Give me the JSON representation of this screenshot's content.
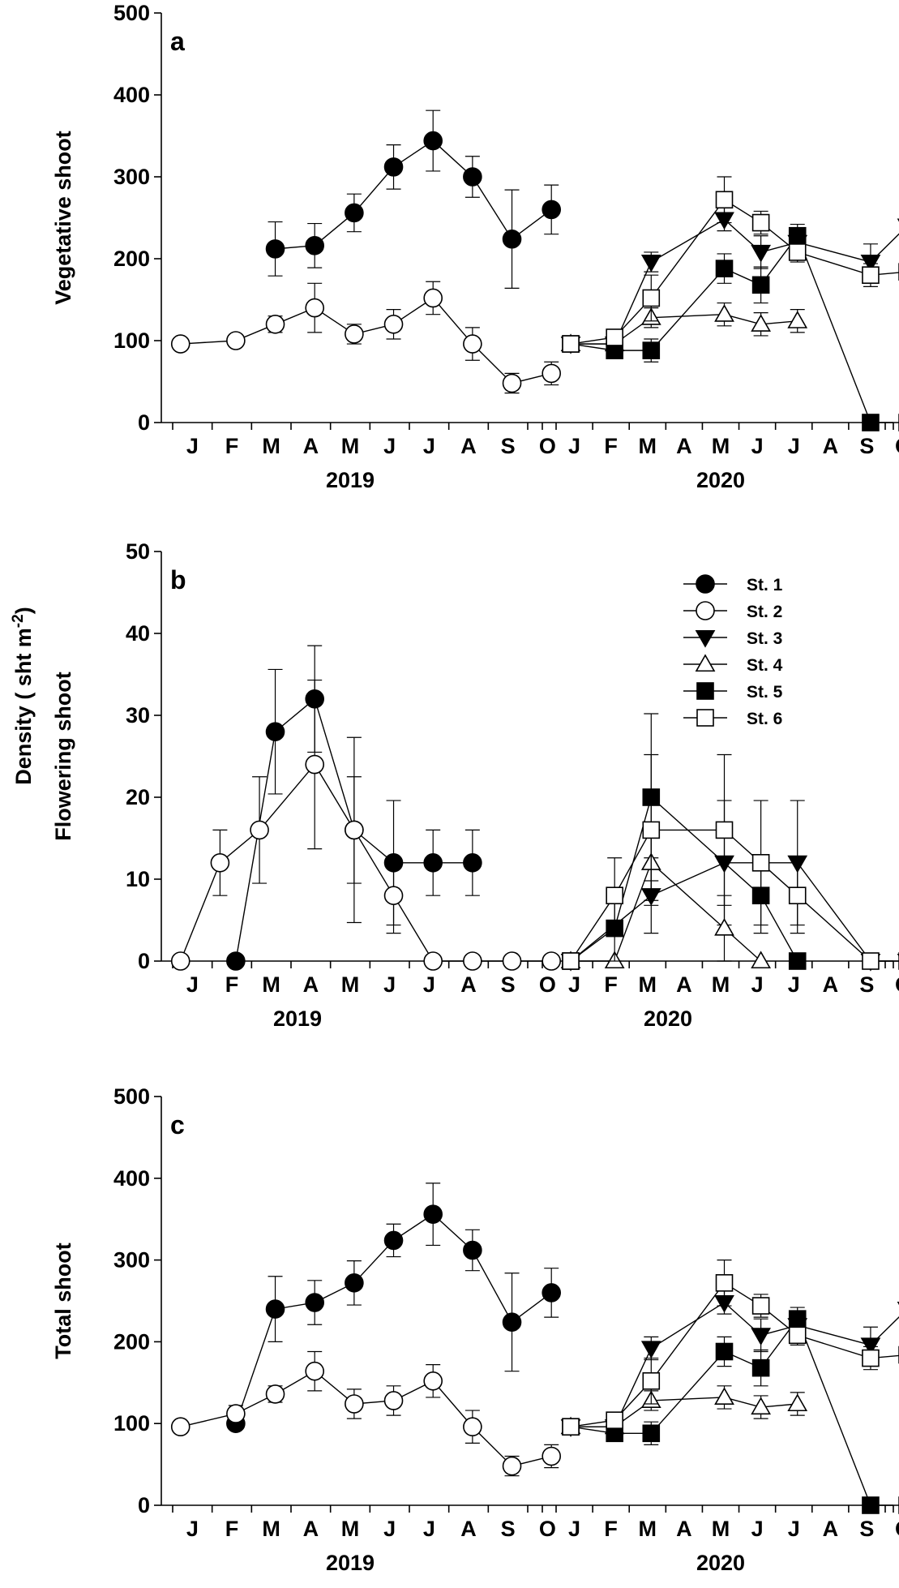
{
  "shared_ylabel": "Density ( sht m-2)",
  "chart_data": [
    {
      "type": "line",
      "panel": "a",
      "ylabel": "Vegetative shoot",
      "ylim": [
        0,
        500
      ],
      "yticks": [
        0,
        100,
        200,
        300,
        400,
        500
      ],
      "month_labels": [
        "J",
        "F",
        "M",
        "A",
        "M",
        "J",
        "J",
        "A",
        "S",
        "O"
      ],
      "year_labels": [
        "2019",
        "2020"
      ],
      "legend": false,
      "series": [
        {
          "name": "St. 1",
          "marker": "circle",
          "fill": "black",
          "year": 2019,
          "x": [
            2.6,
            3.6,
            4.6,
            5.6,
            6.6,
            7.6,
            8.6,
            9.6
          ],
          "y": [
            212,
            216,
            256,
            312,
            344,
            300,
            224,
            260
          ],
          "err": [
            33,
            27,
            23,
            27,
            37,
            25,
            60,
            30
          ]
        },
        {
          "name": "St. 2",
          "marker": "circle",
          "fill": "white",
          "year": 2019,
          "x": [
            0.2,
            1.6,
            2.6,
            3.6,
            4.6,
            5.6,
            6.6,
            7.6,
            8.6,
            9.6
          ],
          "y": [
            96,
            100,
            120,
            140,
            108,
            120,
            152,
            96,
            48,
            60
          ],
          "err": [
            0,
            0,
            10,
            30,
            12,
            18,
            20,
            20,
            12,
            14
          ]
        },
        {
          "name": "St. 3",
          "marker": "triangle-down",
          "fill": "black",
          "year": 2020,
          "x": [
            0.4,
            1.6,
            2.6,
            4.6,
            5.6,
            6.6,
            8.6,
            9.6
          ],
          "y": [
            96,
            96,
            196,
            248,
            208,
            220,
            196,
            240
          ],
          "err": [
            0,
            8,
            12,
            14,
            20,
            18,
            22,
            28
          ]
        },
        {
          "name": "St. 4",
          "marker": "triangle-up",
          "fill": "white",
          "year": 2020,
          "x": [
            0.4,
            1.6,
            2.6,
            4.6,
            5.6,
            6.6
          ],
          "y": [
            96,
            96,
            128,
            132,
            120,
            124
          ],
          "err": [
            0,
            8,
            12,
            14,
            14,
            14
          ]
        },
        {
          "name": "St. 5",
          "marker": "square",
          "fill": "black",
          "year": 2020,
          "x": [
            0.4,
            1.6,
            2.6,
            4.6,
            5.6,
            6.6,
            8.6,
            9.6
          ],
          "y": [
            96,
            88,
            88,
            188,
            168,
            228,
            0,
            0
          ],
          "err": [
            0,
            8,
            14,
            18,
            22,
            14,
            0,
            0
          ]
        },
        {
          "name": "St. 6",
          "marker": "square",
          "fill": "white",
          "year": 2020,
          "x": [
            0.4,
            1.6,
            2.6,
            4.6,
            5.6,
            6.6,
            8.6,
            9.6
          ],
          "y": [
            96,
            104,
            152,
            272,
            244,
            208,
            180,
            184
          ],
          "err": [
            0,
            8,
            28,
            28,
            14,
            12,
            14,
            22
          ]
        }
      ]
    },
    {
      "type": "line",
      "panel": "b",
      "ylabel": "Flowering shoot",
      "ylim": [
        0,
        50
      ],
      "yticks": [
        0,
        10,
        20,
        30,
        40,
        50
      ],
      "month_labels": [
        "J",
        "F",
        "M",
        "A",
        "M",
        "J",
        "J",
        "A",
        "S",
        "O"
      ],
      "year_labels": [
        "2019",
        "2020"
      ],
      "legend": true,
      "legend_placement": "top-right",
      "series": [
        {
          "name": "St. 1",
          "marker": "circle",
          "fill": "black",
          "year": 2019,
          "x": [
            1.6,
            2.6,
            3.6,
            4.6,
            5.6,
            6.6,
            7.6
          ],
          "y": [
            0,
            28,
            32,
            16,
            12,
            12,
            12
          ],
          "err": [
            0,
            7.6,
            6.5,
            11.3,
            7.6,
            4.0,
            4.0
          ]
        },
        {
          "name": "St. 2",
          "marker": "circle",
          "fill": "white",
          "year": 2019,
          "x": [
            0.2,
            1.2,
            2.2,
            3.6,
            4.6,
            5.6,
            6.6,
            7.6,
            8.6,
            9.6
          ],
          "y": [
            0,
            12,
            16,
            24,
            16,
            8,
            0,
            0,
            0,
            0
          ],
          "err": [
            0,
            4.0,
            6.5,
            10.3,
            6.5,
            4.6,
            0,
            0,
            0,
            0
          ]
        },
        {
          "name": "St. 3",
          "marker": "triangle-down",
          "fill": "black",
          "year": 2020,
          "x": [
            0.4,
            2.6,
            4.6,
            6.6,
            8.6,
            9.6
          ],
          "y": [
            0,
            8,
            12,
            12,
            0,
            0
          ],
          "err": [
            0,
            4.6,
            7.6,
            7.6,
            0,
            0
          ]
        },
        {
          "name": "St. 4",
          "marker": "triangle-up",
          "fill": "white",
          "year": 2020,
          "x": [
            0.4,
            1.6,
            2.6,
            4.6,
            5.6
          ],
          "y": [
            0,
            0,
            12,
            4,
            0
          ],
          "err": [
            0,
            0,
            4.6,
            4.0,
            0
          ]
        },
        {
          "name": "St. 5",
          "marker": "square",
          "fill": "black",
          "year": 2020,
          "x": [
            0.4,
            1.6,
            2.6,
            5.6,
            6.6
          ],
          "y": [
            0,
            4,
            20,
            8,
            0
          ],
          "err": [
            0,
            4.0,
            10.2,
            4.6,
            0
          ]
        },
        {
          "name": "St. 6",
          "marker": "square",
          "fill": "white",
          "year": 2020,
          "x": [
            0.4,
            1.6,
            2.6,
            4.6,
            5.6,
            6.6,
            8.6,
            9.6
          ],
          "y": [
            0,
            8,
            16,
            16,
            12,
            8,
            0,
            0
          ],
          "err": [
            0,
            4.6,
            9.2,
            9.2,
            7.6,
            4.6,
            0,
            0
          ]
        }
      ]
    },
    {
      "type": "line",
      "panel": "c",
      "ylabel": "Total shoot",
      "ylim": [
        0,
        500
      ],
      "yticks": [
        0,
        100,
        200,
        300,
        400,
        500
      ],
      "month_labels": [
        "J",
        "F",
        "M",
        "A",
        "M",
        "J",
        "J",
        "A",
        "S",
        "O"
      ],
      "year_labels": [
        "2019",
        "2020"
      ],
      "legend": false,
      "series": [
        {
          "name": "St. 1",
          "marker": "circle",
          "fill": "black",
          "year": 2019,
          "x": [
            1.6,
            2.6,
            3.6,
            4.6,
            5.6,
            6.6,
            7.6,
            8.6,
            9.6
          ],
          "y": [
            100,
            240,
            248,
            272,
            324,
            356,
            312,
            224,
            260
          ],
          "err": [
            0,
            40,
            27,
            27,
            20,
            38,
            25,
            60,
            30
          ]
        },
        {
          "name": "St. 2",
          "marker": "circle",
          "fill": "white",
          "year": 2019,
          "x": [
            0.2,
            1.6,
            2.6,
            3.6,
            4.6,
            5.6,
            6.6,
            7.6,
            8.6,
            9.6
          ],
          "y": [
            96,
            112,
            136,
            164,
            124,
            128,
            152,
            96,
            48,
            60
          ],
          "err": [
            0,
            10,
            10,
            24,
            18,
            18,
            20,
            20,
            12,
            14
          ]
        },
        {
          "name": "St. 3",
          "marker": "triangle-down",
          "fill": "black",
          "year": 2020,
          "x": [
            0.4,
            1.6,
            2.6,
            4.6,
            5.6,
            6.6,
            8.6,
            9.6
          ],
          "y": [
            96,
            96,
            192,
            248,
            208,
            220,
            196,
            240
          ],
          "err": [
            0,
            8,
            14,
            14,
            20,
            18,
            22,
            28
          ]
        },
        {
          "name": "St. 4",
          "marker": "triangle-up",
          "fill": "white",
          "year": 2020,
          "x": [
            0.4,
            1.6,
            2.6,
            4.6,
            5.6,
            6.6
          ],
          "y": [
            96,
            96,
            128,
            132,
            120,
            124
          ],
          "err": [
            0,
            8,
            12,
            14,
            14,
            14
          ]
        },
        {
          "name": "St. 5",
          "marker": "square",
          "fill": "black",
          "year": 2020,
          "x": [
            0.4,
            1.6,
            2.6,
            4.6,
            5.6,
            6.6,
            8.6,
            9.6
          ],
          "y": [
            96,
            88,
            88,
            188,
            168,
            228,
            0,
            0
          ],
          "err": [
            0,
            8,
            14,
            18,
            22,
            14,
            0,
            0
          ]
        },
        {
          "name": "St. 6",
          "marker": "square",
          "fill": "white",
          "year": 2020,
          "x": [
            0.4,
            1.6,
            2.6,
            4.6,
            5.6,
            6.6,
            8.6,
            9.6
          ],
          "y": [
            96,
            104,
            152,
            272,
            244,
            208,
            180,
            184
          ],
          "err": [
            0,
            8,
            28,
            28,
            14,
            12,
            14,
            22
          ]
        }
      ]
    }
  ]
}
